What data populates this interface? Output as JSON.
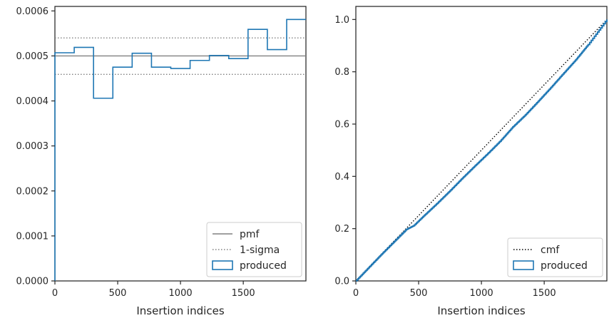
{
  "chart_data": [
    {
      "type": "histogram-step",
      "xlabel": "Insertion indices",
      "ylabel": "",
      "xlim": [
        0,
        1999
      ],
      "ylim": [
        0,
        0.00061
      ],
      "xticks": [
        0,
        500,
        1000,
        1500
      ],
      "xtick_labels": [
        "0",
        "500",
        "1000",
        "1500"
      ],
      "yticks": [
        0,
        0.0001,
        0.0002,
        0.0003,
        0.0004,
        0.0005,
        0.0006
      ],
      "ytick_labels": [
        "0.0000",
        "0.0001",
        "0.0002",
        "0.0003",
        "0.0004",
        "0.0005",
        "0.0006"
      ],
      "bin_edges": [
        0,
        153.8,
        307.6,
        461.4,
        615.2,
        769,
        922.8,
        1076.6,
        1230.4,
        1384.2,
        1538,
        1691.8,
        1845.6,
        1999
      ],
      "values": [
        0.000507,
        0.000519,
        0.000406,
        0.000475,
        0.000506,
        0.000475,
        0.000472,
        0.00049,
        0.000501,
        0.000494,
        0.000559,
        0.000514,
        0.000581
      ],
      "reference_lines": [
        {
          "label": "pmf",
          "y": 0.0005,
          "style": "solid",
          "color": "#808080"
        },
        {
          "label": "1-sigma",
          "y": 0.00054,
          "style": "dotted",
          "color": "#808080"
        },
        {
          "label": "",
          "y": 0.000459,
          "style": "dotted",
          "color": "#808080"
        }
      ],
      "legend": {
        "placement": "bottom-right",
        "entries": [
          {
            "label": "pmf",
            "kind": "line-solid",
            "color": "#808080"
          },
          {
            "label": "1-sigma",
            "kind": "line-dotted",
            "color": "#808080"
          },
          {
            "label": "produced",
            "kind": "patch",
            "color": "#1f77b4"
          }
        ]
      },
      "colors": {
        "series": "#1f77b4"
      }
    },
    {
      "type": "line",
      "xlabel": "Insertion indices",
      "ylabel": "",
      "xlim": [
        0,
        1999
      ],
      "ylim": [
        0,
        1.05
      ],
      "xticks": [
        0,
        500,
        1000,
        1500
      ],
      "xtick_labels": [
        "0",
        "500",
        "1000",
        "1500"
      ],
      "yticks": [
        0,
        0.2,
        0.4,
        0.6,
        0.8,
        1.0
      ],
      "ytick_labels": [
        "0.0",
        "0.2",
        "0.4",
        "0.6",
        "0.8",
        "1.0"
      ],
      "series": [
        {
          "name": "cmf",
          "style": "dotted",
          "color": "#000000",
          "x": [
            0,
            1999
          ],
          "y": [
            0,
            1.0
          ]
        },
        {
          "name": "produced",
          "style": "step",
          "color": "#1f77b4",
          "x": [
            0,
            100,
            200,
            300,
            400,
            460,
            550,
            650,
            750,
            850,
            950,
            1050,
            1150,
            1250,
            1350,
            1450,
            1550,
            1650,
            1750,
            1850,
            1999
          ],
          "y": [
            0,
            0.05,
            0.1,
            0.148,
            0.196,
            0.211,
            0.253,
            0.298,
            0.345,
            0.394,
            0.441,
            0.487,
            0.535,
            0.589,
            0.635,
            0.686,
            0.738,
            0.792,
            0.845,
            0.904,
            1.0
          ]
        }
      ],
      "legend": {
        "placement": "bottom-right",
        "entries": [
          {
            "label": "cmf",
            "kind": "line-dotted",
            "color": "#000000"
          },
          {
            "label": "produced",
            "kind": "patch",
            "color": "#1f77b4"
          }
        ]
      }
    }
  ]
}
